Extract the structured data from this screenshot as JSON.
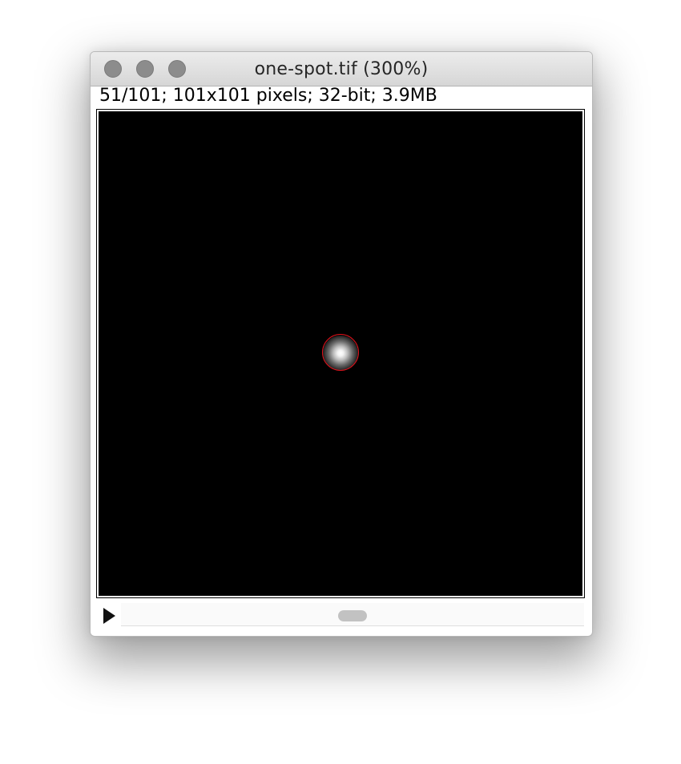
{
  "window": {
    "title": "one-spot.tif (300%)",
    "buttons": [
      "close",
      "minimize",
      "zoom"
    ]
  },
  "image_info": {
    "text": "51/101; 101x101 pixels; 32-bit; 3.9MB"
  },
  "image": {
    "description_icon": "gaussian-spot",
    "roi_color": "#e0121b",
    "background_color": "#000000"
  },
  "slice_scroll": {
    "play_icon": "play-icon",
    "current_slice": 51,
    "total_slices": 101
  },
  "colors": {
    "titlebar": "#dcdcdc",
    "traffic_light": "#8c8c8c",
    "roi": "#e0121b"
  }
}
